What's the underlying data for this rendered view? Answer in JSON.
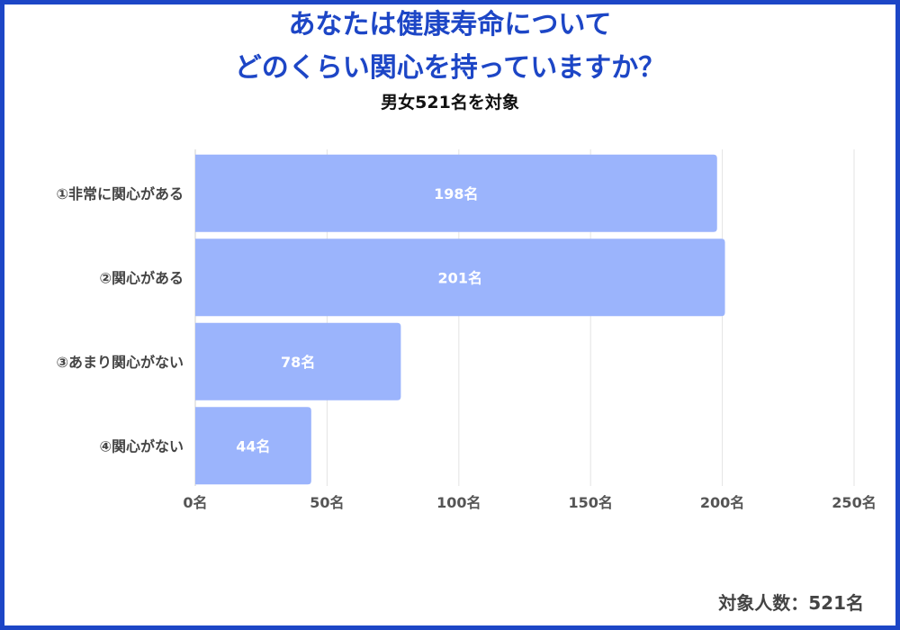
{
  "title_line1": "あなたは健康寿命について",
  "title_line2": "どのくらい関心を持っていますか？",
  "subtitle": "男女521名を対象",
  "footer": "対象人数：521名",
  "colors": {
    "frame": "#1d46c6",
    "title": "#1d46c6",
    "bar": "#9bb4fc",
    "grid": "#e3e3e3",
    "axis_text": "#555555"
  },
  "chart_data": {
    "type": "bar",
    "orientation": "horizontal",
    "categories": [
      "①非常に関心がある",
      "②関心がある",
      "③あまり関心がない",
      "④関心がない"
    ],
    "values": [
      198,
      201,
      78,
      44
    ],
    "data_labels": [
      "198名",
      "201名",
      "78名",
      "44名"
    ],
    "xlim": [
      0,
      250
    ],
    "x_ticks": [
      0,
      50,
      100,
      150,
      200,
      250
    ],
    "x_tick_labels": [
      "0名",
      "50名",
      "100名",
      "150名",
      "200名",
      "250名"
    ],
    "grid": true
  }
}
